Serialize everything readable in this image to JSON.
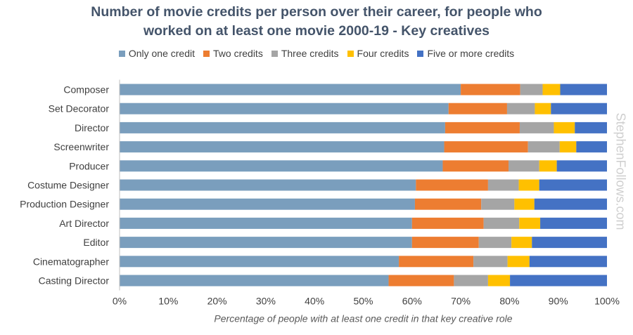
{
  "chart_data": {
    "type": "bar",
    "orientation": "horizontal",
    "stacked": true,
    "title_line1": "Number of movie credits per person over their career, for people who",
    "title_line2": "worked on at least one movie 2000-19 - Key creatives",
    "xlabel": "Percentage of people with at least one credit in that key creative role",
    "ylabel": "",
    "xlim": [
      0,
      100
    ],
    "x_ticks": [
      "0%",
      "10%",
      "20%",
      "30%",
      "40%",
      "50%",
      "60%",
      "70%",
      "80%",
      "90%",
      "100%"
    ],
    "legend_position": "top",
    "categories": [
      "Composer",
      "Set Decorator",
      "Director",
      "Screenwriter",
      "Producer",
      "Costume Designer",
      "Production Designer",
      "Art Director",
      "Editor",
      "Cinematographer",
      "Casting Director"
    ],
    "series": [
      {
        "name": "Only one credit",
        "color": "#7a9ebd",
        "values": [
          70.0,
          67.5,
          66.8,
          66.6,
          66.3,
          60.8,
          60.6,
          60.0,
          60.0,
          57.3,
          55.2
        ]
      },
      {
        "name": "Two credits",
        "color": "#ed7d31",
        "values": [
          12.2,
          12.0,
          15.3,
          17.2,
          13.5,
          14.8,
          13.6,
          14.7,
          13.7,
          15.3,
          13.4
        ]
      },
      {
        "name": "Three credits",
        "color": "#a5a5a5",
        "values": [
          4.6,
          5.7,
          7.0,
          6.5,
          6.3,
          6.3,
          6.8,
          7.3,
          6.7,
          7.0,
          7.0
        ]
      },
      {
        "name": "Four credits",
        "color": "#ffc000",
        "values": [
          3.6,
          3.3,
          4.3,
          3.4,
          3.6,
          4.2,
          4.1,
          4.3,
          4.2,
          4.5,
          4.5
        ]
      },
      {
        "name": "Five or more credits",
        "color": "#4472c4",
        "values": [
          9.6,
          11.5,
          6.6,
          6.3,
          10.3,
          13.9,
          14.9,
          13.7,
          15.4,
          15.9,
          19.9
        ]
      }
    ]
  },
  "watermark": "StephenFollows.com"
}
